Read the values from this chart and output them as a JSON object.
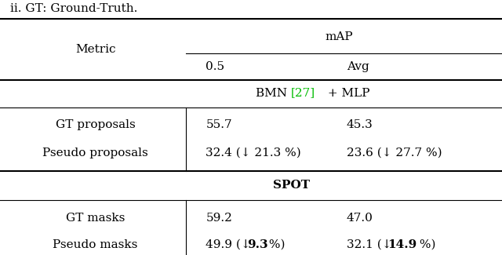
{
  "title_top": "ii. GT: Ground-Truth.",
  "header_metric": "Metric",
  "header_map": "mAP",
  "header_05": "0.5",
  "header_avg": "Avg",
  "section1_ref_color": "#00bb00",
  "bg_color": "#ffffff",
  "text_color": "#000000",
  "line_color": "#000000",
  "font_size": 11
}
